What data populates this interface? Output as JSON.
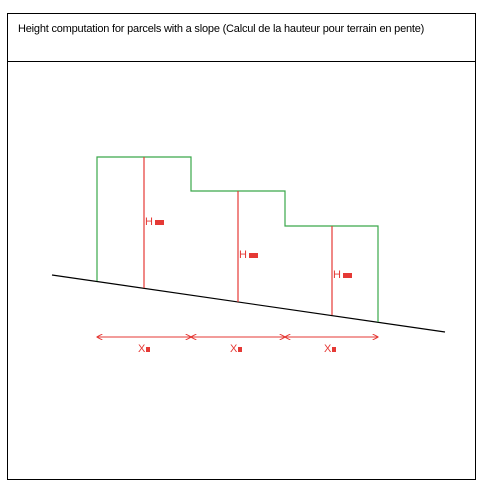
{
  "title": "Height computation for parcels with a slope (Calcul de la hauteur pour terrain en pente)",
  "colors": {
    "outline": "#3aa84a",
    "measure": "#e53935",
    "ground": "#000000"
  },
  "labels": {
    "h1": "H",
    "h2": "H",
    "h3": "H",
    "x1": "X",
    "x2": "X",
    "x3": "X"
  }
}
